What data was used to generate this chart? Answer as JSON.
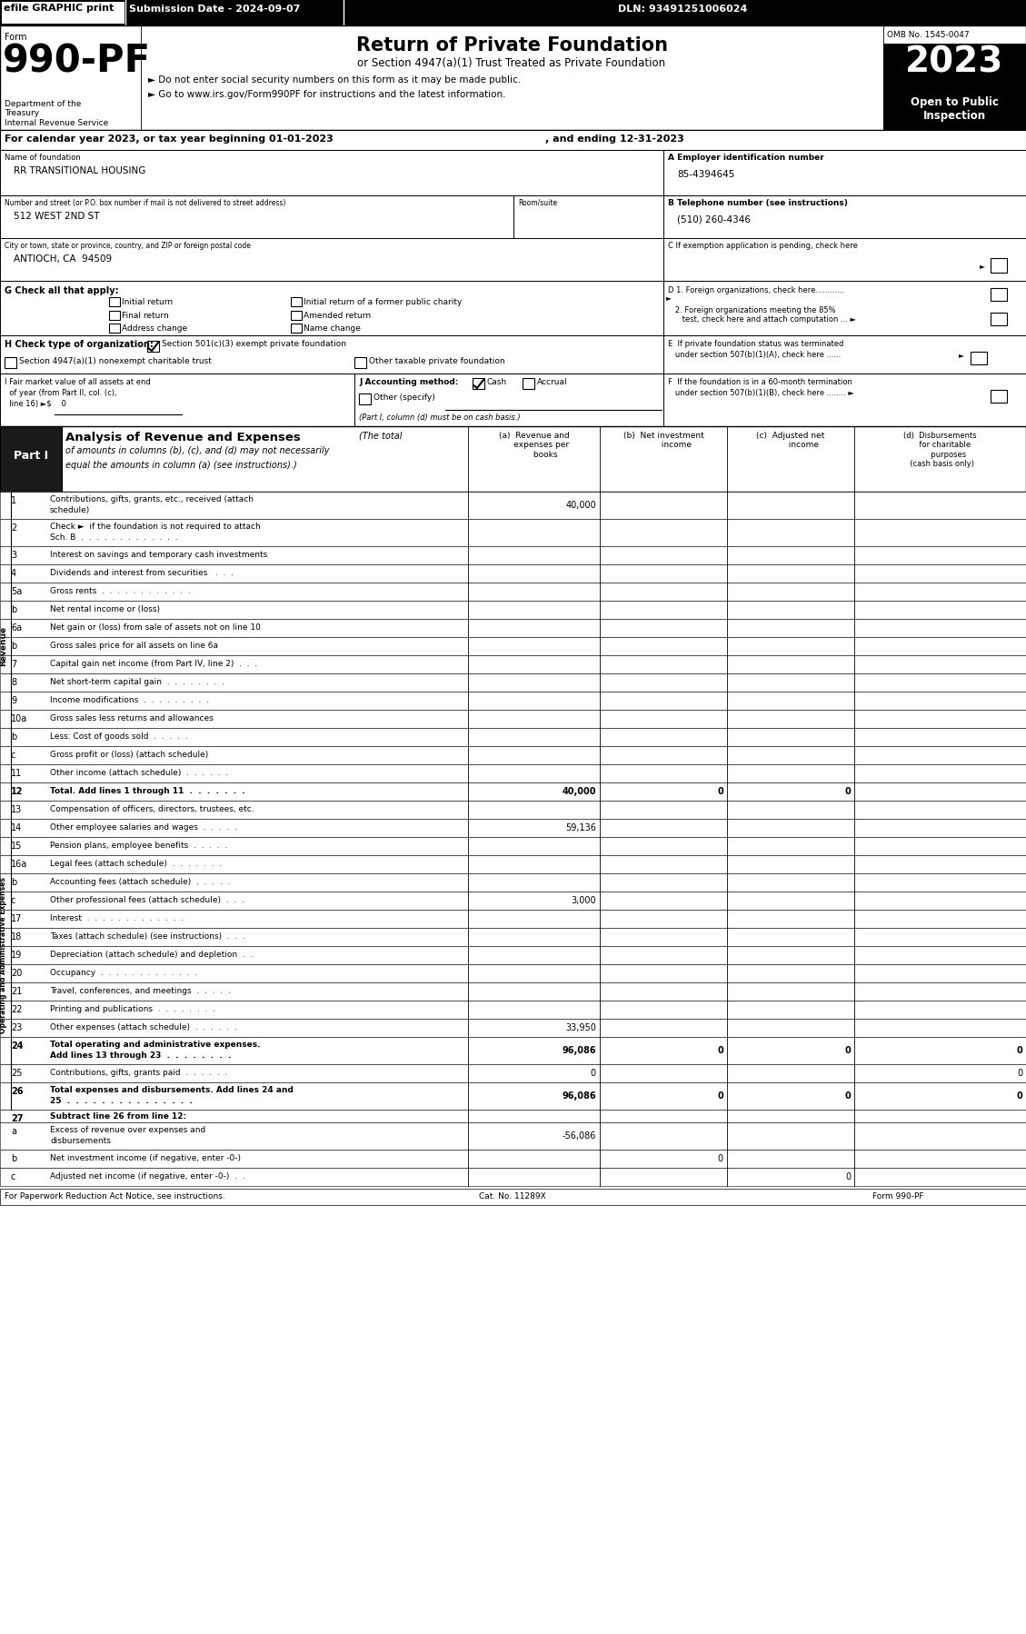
{
  "title_top": "efile GRAPHIC print",
  "submission_date": "Submission Date - 2024-09-07",
  "dln": "DLN: 93491251006024",
  "form_number": "990-PF",
  "omb": "OMB No. 1545-0047",
  "year": "2023",
  "open_text": "Open to Public\nInspection",
  "cal_year_line1": "For calendar year 2023, or tax year beginning 01-01-2023",
  "cal_year_line2": ", and ending 12-31-2023",
  "name_label": "Name of foundation",
  "name_value": "RR TRANSITIONAL HOUSING",
  "ein_label": "A Employer identification number",
  "ein_value": "85-4394645",
  "addr_label": "Number and street (or P.O. box number if mail is not delivered to street address)",
  "addr_room": "Room/suite",
  "addr_value": "512 WEST 2ND ST",
  "city_label": "City or town, state or province, country, and ZIP or foreign postal code",
  "city_value": "ANTIOCH, CA  94509",
  "phone_label": "B Telephone number (see instructions)",
  "phone_value": "(510) 260-4346",
  "shade_color": "#c8c8c8",
  "rows": [
    {
      "num": "1",
      "label": "Contributions, gifts, grants, etc., received (attach\nschedule)",
      "a": "40,000",
      "b": "",
      "c": "",
      "d": "",
      "shade_b": true,
      "shade_c": true,
      "shade_d": true
    },
    {
      "num": "2",
      "label": "Check ►  if the foundation is not required to attach\nSch. B  .  .  .  .  .  .  .  .  .  .  .  .  .",
      "a": "",
      "b": "",
      "c": "",
      "d": "",
      "shade_a": true,
      "shade_b": true,
      "shade_c": true,
      "shade_d": true
    },
    {
      "num": "3",
      "label": "Interest on savings and temporary cash investments",
      "a": "",
      "b": "",
      "c": "",
      "d": ""
    },
    {
      "num": "4",
      "label": "Dividends and interest from securities   .  .  .",
      "a": "",
      "b": "",
      "c": "",
      "d": ""
    },
    {
      "num": "5a",
      "label": "Gross rents  .  .  .  .  .  .  .  .  .  .  .  .",
      "a": "",
      "b": "",
      "c": "",
      "d": ""
    },
    {
      "num": "b",
      "label": "Net rental income or (loss)",
      "a": "",
      "b": "",
      "c": "",
      "d": "",
      "shade_b": true,
      "shade_c": true,
      "shade_d": true
    },
    {
      "num": "6a",
      "label": "Net gain or (loss) from sale of assets not on line 10",
      "a": "",
      "b": "",
      "c": "",
      "d": ""
    },
    {
      "num": "b",
      "label": "Gross sales price for all assets on line 6a",
      "a": "",
      "b": "",
      "c": "",
      "d": "",
      "shade_a": true,
      "shade_b": true,
      "shade_c": true,
      "shade_d": true
    },
    {
      "num": "7",
      "label": "Capital gain net income (from Part IV, line 2)  .  .  .",
      "a": "",
      "b": "",
      "c": "",
      "d": "",
      "shade_a": true
    },
    {
      "num": "8",
      "label": "Net short-term capital gain  .  .  .  .  .  .  .  .",
      "a": "",
      "b": "",
      "c": "",
      "d": "",
      "shade_a": true,
      "shade_c": true
    },
    {
      "num": "9",
      "label": "Income modifications  .  .  .  .  .  .  .  .  .",
      "a": "",
      "b": "",
      "c": "",
      "d": "",
      "shade_a": true,
      "shade_b": true
    },
    {
      "num": "10a",
      "label": "Gross sales less returns and allowances",
      "a": "",
      "b": "",
      "c": "",
      "d": "",
      "shade_b": true,
      "shade_c": true,
      "shade_d": true
    },
    {
      "num": "b",
      "label": "Less: Cost of goods sold  .  .  .  .  .",
      "a": "",
      "b": "",
      "c": "",
      "d": "",
      "shade_b": true,
      "shade_c": true,
      "shade_d": true
    },
    {
      "num": "c",
      "label": "Gross profit or (loss) (attach schedule)",
      "a": "",
      "b": "",
      "c": "",
      "d": "",
      "shade_b": true,
      "shade_c": true,
      "shade_d": true
    },
    {
      "num": "11",
      "label": "Other income (attach schedule)  .  .  .  .  .  .",
      "a": "",
      "b": "",
      "c": "",
      "d": ""
    },
    {
      "num": "12",
      "label": "Total. Add lines 1 through 11  .  .  .  .  .  .  .",
      "a": "40,000",
      "b": "0",
      "c": "0",
      "d": "",
      "bold": true
    },
    {
      "num": "13",
      "label": "Compensation of officers, directors, trustees, etc.",
      "a": "",
      "b": "",
      "c": "",
      "d": ""
    },
    {
      "num": "14",
      "label": "Other employee salaries and wages  .  .  .  .  .",
      "a": "59,136",
      "b": "",
      "c": "",
      "d": ""
    },
    {
      "num": "15",
      "label": "Pension plans, employee benefits  .  .  .  .  .",
      "a": "",
      "b": "",
      "c": "",
      "d": ""
    },
    {
      "num": "16a",
      "label": "Legal fees (attach schedule)  .  .  .  .  .  .  .",
      "a": "",
      "b": "",
      "c": "",
      "d": ""
    },
    {
      "num": "b",
      "label": "Accounting fees (attach schedule)  .  .  .  .  .",
      "a": "",
      "b": "",
      "c": "",
      "d": ""
    },
    {
      "num": "c",
      "label": "Other professional fees (attach schedule)  .  .  .",
      "a": "3,000",
      "b": "",
      "c": "",
      "d": ""
    },
    {
      "num": "17",
      "label": "Interest  .  .  .  .  .  .  .  .  .  .  .  .  .",
      "a": "",
      "b": "",
      "c": "",
      "d": ""
    },
    {
      "num": "18",
      "label": "Taxes (attach schedule) (see instructions)  .  .  .",
      "a": "",
      "b": "",
      "c": "",
      "d": ""
    },
    {
      "num": "19",
      "label": "Depreciation (attach schedule) and depletion  .  .",
      "a": "",
      "b": "",
      "c": "",
      "d": ""
    },
    {
      "num": "20",
      "label": "Occupancy  .  .  .  .  .  .  .  .  .  .  .  .  .",
      "a": "",
      "b": "",
      "c": "",
      "d": ""
    },
    {
      "num": "21",
      "label": "Travel, conferences, and meetings  .  .  .  .  .",
      "a": "",
      "b": "",
      "c": "",
      "d": ""
    },
    {
      "num": "22",
      "label": "Printing and publications  .  .  .  .  .  .  .  .",
      "a": "",
      "b": "",
      "c": "",
      "d": ""
    },
    {
      "num": "23",
      "label": "Other expenses (attach schedule)  .  .  .  .  .  .",
      "a": "33,950",
      "b": "",
      "c": "",
      "d": ""
    },
    {
      "num": "24",
      "label": "Total operating and administrative expenses.\nAdd lines 13 through 23  .  .  .  .  .  .  .  .",
      "a": "96,086",
      "b": "0",
      "c": "0",
      "d": "0",
      "bold": true
    },
    {
      "num": "25",
      "label": "Contributions, gifts, grants paid  .  .  .  .  .  .",
      "a": "0",
      "b": "",
      "c": "",
      "d": "0"
    },
    {
      "num": "26",
      "label": "Total expenses and disbursements. Add lines 24 and\n25  .  .  .  .  .  .  .  .  .  .  .  .  .  .  .",
      "a": "96,086",
      "b": "0",
      "c": "0",
      "d": "0",
      "bold": true
    },
    {
      "num": "27",
      "label": "Subtract line 26 from line 12:",
      "a": "",
      "b": "",
      "c": "",
      "d": "",
      "bold": true,
      "header": true
    },
    {
      "num": "a",
      "label": "Excess of revenue over expenses and\ndisbursements",
      "a": "-56,086",
      "b": "",
      "c": "",
      "d": "",
      "shade_b": true,
      "shade_c": true,
      "shade_d": true
    },
    {
      "num": "b",
      "label": "Net investment income (if negative, enter -0-)",
      "a": "",
      "b": "0",
      "c": "",
      "d": "",
      "shade_a": true,
      "shade_c": true,
      "shade_d": true
    },
    {
      "num": "c",
      "label": "Adjusted net income (if negative, enter -0-)  .  .",
      "a": "",
      "b": "",
      "c": "0",
      "d": "",
      "shade_a": true,
      "shade_b": true,
      "shade_d": true
    }
  ],
  "footer_left": "For Paperwork Reduction Act Notice, see instructions.",
  "footer_cat": "Cat. No. 11289X",
  "footer_right": "Form 990-PF"
}
